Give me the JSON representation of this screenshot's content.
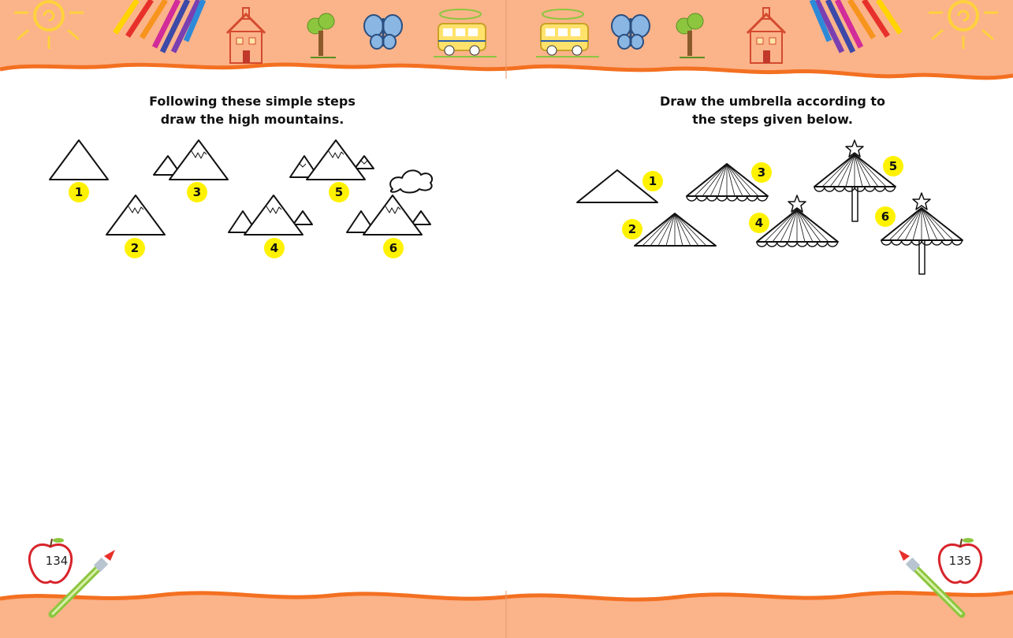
{
  "left_page": {
    "title_line1": "Following these simple steps",
    "title_line2": "draw the high mountains.",
    "steps": [
      "1",
      "2",
      "3",
      "4",
      "5",
      "6"
    ],
    "page_number": "134"
  },
  "right_page": {
    "title_line1": "Draw the umbrella according to",
    "title_line2": "the steps given below.",
    "steps": [
      "1",
      "2",
      "3",
      "4",
      "5",
      "6"
    ],
    "page_number": "135"
  },
  "colors": {
    "banner": "#fbb38a",
    "banner_edge": "#f37021",
    "step_badge": "#fff200"
  },
  "header_icons": [
    "sun-icon",
    "crayons-icon",
    "schoolhouse-icon",
    "tree-icon",
    "butterfly-icon",
    "school-bus-icon"
  ],
  "footer_icons": [
    "apple-icon",
    "paintbrush-icon"
  ]
}
